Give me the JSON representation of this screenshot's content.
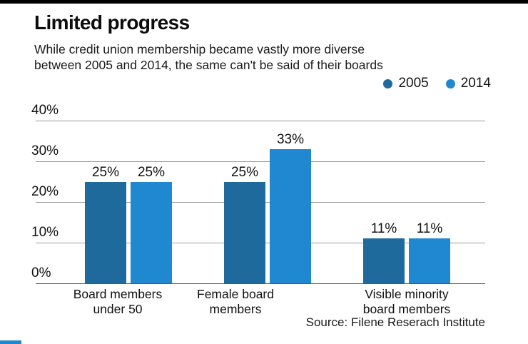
{
  "page": {
    "title": "Limited progress",
    "subtitle_line1": "While credit union membership became vastly more diverse",
    "subtitle_line2": "between 2005 and 2014, the same can't be said of their boards",
    "source": "Source: Filene Reserach Institute"
  },
  "colors": {
    "series_2005": "#1f6a9d",
    "series_2014": "#2088d1",
    "gridline": "#999999",
    "baseline": "#555555",
    "top_rule": "#000000",
    "bottom_accent": "#2088d1",
    "text": "#111111"
  },
  "chart_data": {
    "type": "bar",
    "title": "Limited progress",
    "subtitle": "While credit union membership became vastly more diverse between 2005 and 2014, the same can't be said of their boards",
    "categories": [
      [
        "Board members",
        "under 50"
      ],
      [
        "Female board",
        "members"
      ],
      [
        "Visible minority",
        "board members"
      ]
    ],
    "series": [
      {
        "name": "2005",
        "color": "#1f6a9d",
        "values": [
          25,
          25,
          11
        ]
      },
      {
        "name": "2014",
        "color": "#2088d1",
        "values": [
          25,
          33,
          11
        ]
      }
    ],
    "value_labels": [
      [
        "25%",
        "25%",
        "11%"
      ],
      [
        "25%",
        "33%",
        "11%"
      ]
    ],
    "y_ticks": [
      0,
      10,
      20,
      30,
      40
    ],
    "y_tick_labels": [
      "0%",
      "10%",
      "20%",
      "30%",
      "40%"
    ],
    "ylim": [
      0,
      40
    ],
    "grid": true,
    "legend_position": "top-right",
    "source": "Source: Filene Reserach Institute"
  }
}
